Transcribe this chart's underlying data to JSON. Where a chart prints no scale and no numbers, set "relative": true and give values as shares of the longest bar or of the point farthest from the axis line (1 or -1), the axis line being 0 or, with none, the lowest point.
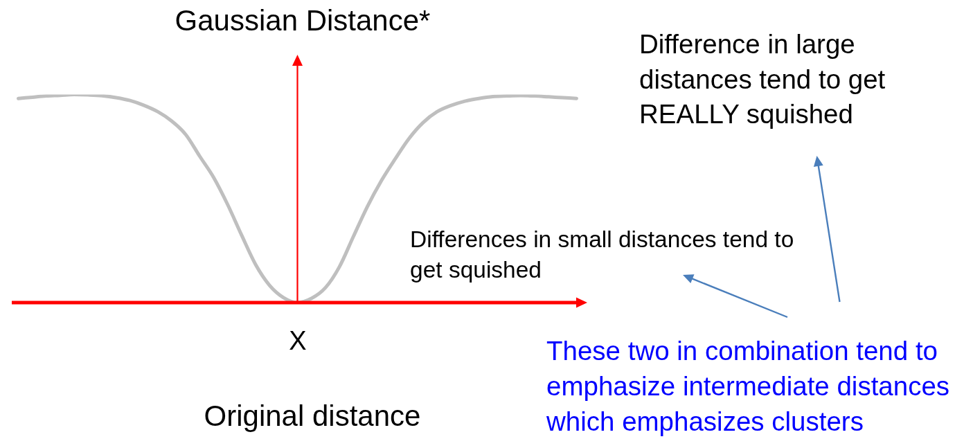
{
  "chart_data": {
    "type": "line",
    "relative": true,
    "ylabel": "Gaussian Distance*",
    "xlabel": "Original distance",
    "categories": [
      null,
      null,
      null,
      null,
      null,
      null,
      null,
      null,
      null,
      null,
      null,
      null,
      null,
      null,
      null,
      null,
      null,
      null,
      null,
      null,
      null,
      null,
      null,
      null,
      null,
      null,
      null,
      null,
      null,
      null,
      null,
      null,
      null,
      null,
      null,
      null,
      null,
      null,
      null,
      null,
      null
    ],
    "values": [
      0.981,
      0.987,
      0.993,
      0.996,
      1,
      0.998,
      0.994,
      0.985,
      0.971,
      0.948,
      0.917,
      0.872,
      0.807,
      0.703,
      0.601,
      0.471,
      0.324,
      0.183,
      0.083,
      0.024,
      0,
      0.02,
      0.071,
      0.171,
      0.316,
      0.46,
      0.584,
      0.69,
      0.789,
      0.865,
      0.917,
      0.947,
      0.968,
      0.981,
      0.99,
      0.993,
      0.995,
      0.993,
      0.989,
      0.985,
      0.981
    ],
    "color": "#bfbfbf",
    "annotations": [
      "Difference in large\ndistances tend to get\nREALLY squished",
      "Differences in small distances tend to\nget squished",
      "X",
      "These two in combination tend to\nemphasize intermediate distances\nwhich emphasizes clusters"
    ]
  }
}
